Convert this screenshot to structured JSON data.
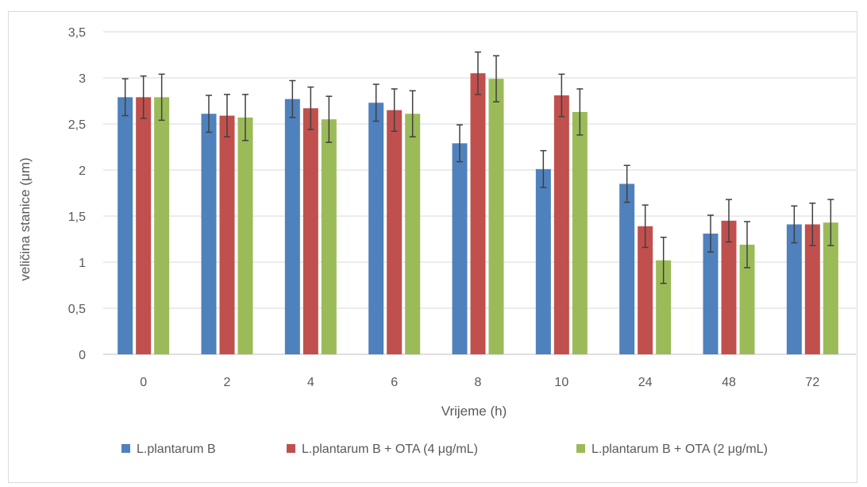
{
  "chart_data": {
    "type": "bar",
    "xlabel": "Vrijeme (h)",
    "ylabel": "veličina stanice (μm)",
    "categories": [
      "0",
      "2",
      "4",
      "6",
      "8",
      "10",
      "24",
      "48",
      "72"
    ],
    "y_ticks": [
      "0",
      "0,5",
      "1",
      "1,5",
      "2",
      "2,5",
      "3",
      "3,5"
    ],
    "ylim": [
      0,
      3.5
    ],
    "grid": true,
    "legend_position": "bottom",
    "error_bars": true,
    "series": [
      {
        "name": "L.plantarum B",
        "color": "#4f81bd",
        "values": [
          2.79,
          2.61,
          2.77,
          2.73,
          2.29,
          2.01,
          1.85,
          1.31,
          1.41
        ],
        "errors": [
          0.2,
          0.2,
          0.2,
          0.2,
          0.2,
          0.2,
          0.2,
          0.2,
          0.2
        ]
      },
      {
        "name": "L.plantarum B + OTA (4 μg/mL)",
        "color": "#c0504d",
        "values": [
          2.79,
          2.59,
          2.67,
          2.65,
          3.05,
          2.81,
          1.39,
          1.45,
          1.41
        ],
        "errors": [
          0.23,
          0.23,
          0.23,
          0.23,
          0.23,
          0.23,
          0.23,
          0.23,
          0.23
        ]
      },
      {
        "name": "L.plantarum B + OTA (2 μg/mL)",
        "color": "#9bbb59",
        "values": [
          2.79,
          2.57,
          2.55,
          2.61,
          2.99,
          2.63,
          1.02,
          1.19,
          1.43
        ],
        "errors": [
          0.25,
          0.25,
          0.25,
          0.25,
          0.25,
          0.25,
          0.25,
          0.25,
          0.25
        ]
      }
    ]
  }
}
